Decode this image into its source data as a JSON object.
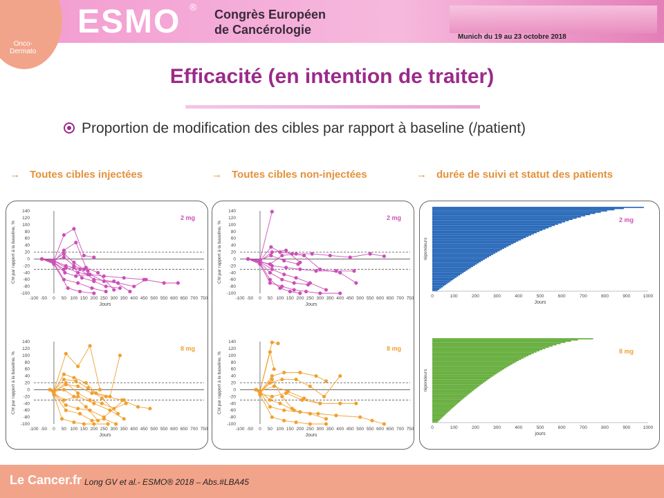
{
  "header": {
    "badge_line1": "Onco-",
    "badge_line2": "Dermato",
    "logo": "ESMO",
    "reg": "®",
    "congress_line1": "Congrès Européen",
    "congress_line2": "de Cancérologie",
    "dates": "Munich du 19 au 23 octobre 2018"
  },
  "slide": {
    "title": "Efficacité (en intention de traiter)",
    "bullet": "Proportion de modification des cibles par rapport à baseline (/patient)"
  },
  "columns": [
    {
      "label": "Toutes cibles injectées"
    },
    {
      "label": "Toutes cibles non-injectées"
    },
    {
      "label": "durée de suivi et statut des patients"
    }
  ],
  "chart_common": {
    "ylabel": "Cht par rapport à la baseline, %",
    "xlabel": "Jours",
    "xticks": [
      "-100",
      "-50",
      "0",
      "50",
      "100",
      "150",
      "200",
      "250",
      "300",
      "350",
      "400",
      "450",
      "500",
      "550",
      "600",
      "650",
      "700",
      "750"
    ],
    "yticks": [
      "140",
      "120",
      "100",
      "80",
      "60",
      "40",
      "20",
      "0",
      "-20",
      "-40",
      "-60",
      "-80",
      "-100"
    ]
  },
  "swimmer_common": {
    "ylabel": "répondeurs",
    "xticks": [
      "0",
      "100",
      "200",
      "300",
      "400",
      "500",
      "600",
      "700",
      "800",
      "900",
      "1000"
    ],
    "xlabel_top": "Jours",
    "xlabel_bottom": "jours"
  },
  "chart_data": [
    {
      "type": "line",
      "panel": "injected",
      "dose": "2 mg",
      "color": "#cc4fb7",
      "series": [
        {
          "x": [
            -60,
            0,
            50,
            100,
            150,
            200
          ],
          "y": [
            0,
            -5,
            70,
            88,
            10,
            5
          ]
        },
        {
          "x": [
            -60,
            0,
            50,
            110,
            160,
            220,
            300
          ],
          "y": [
            0,
            -8,
            25,
            48,
            -25,
            -40,
            -90
          ]
        },
        {
          "x": [
            -60,
            0,
            55,
            110,
            170,
            250,
            350,
            450,
            550,
            620
          ],
          "y": [
            0,
            -10,
            -40,
            -50,
            -45,
            -50,
            -55,
            -60,
            -70,
            -70
          ]
        },
        {
          "x": [
            -60,
            0,
            50,
            120,
            190,
            260
          ],
          "y": [
            0,
            -12,
            -60,
            -70,
            -85,
            -95
          ]
        },
        {
          "x": [
            -60,
            0,
            60,
            130,
            200,
            300,
            380
          ],
          "y": [
            0,
            -5,
            -20,
            -30,
            -60,
            -65,
            -95
          ]
        },
        {
          "x": [
            -60,
            0,
            50,
            100,
            150
          ],
          "y": [
            0,
            -3,
            15,
            -10,
            -30
          ]
        },
        {
          "x": [
            -60,
            0,
            50,
            100,
            140,
            200,
            260,
            330
          ],
          "y": [
            0,
            -10,
            -30,
            -25,
            -55,
            -65,
            -80,
            -85
          ]
        },
        {
          "x": [
            -60,
            0,
            60,
            120,
            180,
            250,
            320,
            400,
            460
          ],
          "y": [
            0,
            -6,
            -25,
            -40,
            -45,
            -65,
            -70,
            -80,
            -60
          ]
        },
        {
          "x": [
            -60,
            0,
            70,
            130,
            200
          ],
          "y": [
            0,
            -15,
            -85,
            -95,
            -100
          ]
        },
        {
          "x": [
            -60,
            0,
            50,
            100,
            170
          ],
          "y": [
            0,
            -4,
            5,
            -20,
            -35
          ]
        }
      ]
    },
    {
      "type": "line",
      "panel": "non-injected",
      "dose": "2 mg",
      "color": "#cc4fb7",
      "series": [
        {
          "x": [
            -60,
            0,
            60
          ],
          "y": [
            0,
            -3,
            138
          ]
        },
        {
          "x": [
            -60,
            0,
            55,
            100,
            160,
            220,
            300,
            400,
            480
          ],
          "y": [
            0,
            -5,
            35,
            20,
            15,
            10,
            -30,
            -40,
            -70
          ]
        },
        {
          "x": [
            -60,
            0,
            50,
            110,
            180,
            260,
            350,
            450,
            550,
            620
          ],
          "y": [
            0,
            -8,
            -15,
            10,
            15,
            15,
            10,
            5,
            15,
            8
          ]
        },
        {
          "x": [
            -60,
            0,
            60,
            130,
            200,
            280,
            380,
            470
          ],
          "y": [
            0,
            -6,
            -20,
            -25,
            -30,
            -35,
            -35,
            -35
          ]
        },
        {
          "x": [
            -60,
            0,
            50,
            110,
            170,
            240
          ],
          "y": [
            0,
            -10,
            -40,
            -60,
            -70,
            -75
          ]
        },
        {
          "x": [
            -60,
            0,
            50,
            100,
            150,
            200
          ],
          "y": [
            0,
            -12,
            -60,
            -85,
            -95,
            -100
          ]
        },
        {
          "x": [
            -60,
            0,
            60,
            120,
            180,
            250,
            330
          ],
          "y": [
            0,
            -8,
            -30,
            -45,
            -55,
            -70,
            -90
          ]
        },
        {
          "x": [
            -60,
            0,
            55,
            120,
            190
          ],
          "y": [
            0,
            -4,
            10,
            -5,
            -15
          ]
        },
        {
          "x": [
            -60,
            0,
            50,
            110,
            170,
            230,
            300,
            400
          ],
          "y": [
            0,
            -15,
            -70,
            -80,
            -90,
            -95,
            -100,
            -100
          ]
        },
        {
          "x": [
            -60,
            0,
            60,
            130,
            200
          ],
          "y": [
            0,
            -6,
            20,
            25,
            -10
          ]
        }
      ]
    },
    {
      "type": "line",
      "panel": "injected",
      "dose": "8 mg",
      "color": "#f0a030",
      "series": [
        {
          "x": [
            -20,
            0,
            60,
            120,
            180,
            230
          ],
          "y": [
            0,
            -3,
            105,
            68,
            128,
            0
          ]
        },
        {
          "x": [
            -20,
            0,
            50,
            100,
            160,
            210,
            280,
            330
          ],
          "y": [
            0,
            -5,
            45,
            35,
            20,
            -10,
            -20,
            100
          ]
        },
        {
          "x": [
            -20,
            0,
            60,
            120,
            190,
            260,
            340,
            420,
            480
          ],
          "y": [
            0,
            -8,
            15,
            10,
            -10,
            -20,
            -30,
            -50,
            -55
          ]
        },
        {
          "x": [
            -20,
            0,
            50,
            120,
            200,
            280,
            350
          ],
          "y": [
            0,
            -10,
            -30,
            -20,
            -40,
            -60,
            -85
          ]
        },
        {
          "x": [
            -20,
            0,
            60,
            130,
            190,
            250,
            310
          ],
          "y": [
            0,
            -12,
            -60,
            -70,
            -90,
            -85,
            -100
          ]
        },
        {
          "x": [
            -20,
            0,
            40,
            100,
            150,
            200,
            270
          ],
          "y": [
            0,
            -15,
            -85,
            -95,
            -100,
            -100,
            -100
          ]
        },
        {
          "x": [
            -20,
            0,
            60,
            120,
            180,
            240,
            300,
            360
          ],
          "y": [
            0,
            -6,
            20,
            -10,
            -30,
            -40,
            -55,
            -40
          ]
        },
        {
          "x": [
            -20,
            0,
            50,
            110,
            170,
            240,
            320
          ],
          "y": [
            0,
            -4,
            30,
            25,
            5,
            -25,
            -70
          ]
        },
        {
          "x": [
            -20,
            0,
            60,
            120,
            180,
            250,
            350
          ],
          "y": [
            0,
            -10,
            -45,
            -55,
            -60,
            -80,
            -30
          ]
        },
        {
          "x": [
            -20,
            0,
            50,
            100,
            160,
            220
          ],
          "y": [
            0,
            -5,
            0,
            -20,
            -50,
            -90
          ]
        }
      ]
    },
    {
      "type": "line",
      "panel": "non-injected",
      "dose": "8 mg",
      "color": "#f0a030",
      "series": [
        {
          "x": [
            -20,
            0,
            60,
            90
          ],
          "y": [
            0,
            -3,
            138,
            135
          ]
        },
        {
          "x": [
            -20,
            0,
            50,
            70
          ],
          "y": [
            0,
            -5,
            110,
            60
          ]
        },
        {
          "x": [
            -20,
            0,
            60,
            120,
            200,
            280,
            330
          ],
          "y": [
            0,
            -8,
            40,
            50,
            50,
            40,
            25
          ]
        },
        {
          "x": [
            -20,
            0,
            50,
            110,
            180,
            250,
            320,
            400
          ],
          "y": [
            0,
            -10,
            20,
            30,
            30,
            10,
            -20,
            40
          ]
        },
        {
          "x": [
            -20,
            0,
            60,
            130,
            210,
            300,
            400,
            480
          ],
          "y": [
            0,
            -12,
            -20,
            -10,
            -30,
            -40,
            -40,
            -40
          ]
        },
        {
          "x": [
            -20,
            0,
            50,
            120,
            200,
            290,
            380,
            500,
            560,
            620
          ],
          "y": [
            0,
            -6,
            -50,
            -60,
            -65,
            -70,
            -75,
            -80,
            -90,
            -100
          ]
        },
        {
          "x": [
            -20,
            0,
            60,
            120,
            180,
            250,
            330
          ],
          "y": [
            0,
            -15,
            -80,
            -90,
            -95,
            -100,
            -100
          ]
        },
        {
          "x": [
            -20,
            0,
            70,
            140,
            220,
            300
          ],
          "y": [
            0,
            -4,
            10,
            -5,
            -25,
            -40
          ]
        },
        {
          "x": [
            -20,
            0,
            50,
            100,
            170,
            250,
            330
          ],
          "y": [
            0,
            -5,
            -30,
            -40,
            -60,
            -70,
            -85
          ]
        },
        {
          "x": [
            -20,
            0,
            60,
            110,
            160
          ],
          "y": [
            0,
            -8,
            30,
            -20,
            -55
          ]
        }
      ]
    },
    {
      "type": "bar",
      "panel": "swimmer",
      "dose": "2 mg",
      "orientation": "horizontal",
      "color": "#1f62b6",
      "max_days": 975,
      "n_rows": 70
    },
    {
      "type": "bar",
      "panel": "swimmer",
      "dose": "8 mg",
      "orientation": "horizontal",
      "color": "#5faa34",
      "max_days": 735,
      "n_rows": 70
    }
  ],
  "footer": {
    "logo": "Le Cancer.fr",
    "citation": "Long GV et al.- ESMO® 2018 – Abs.#LBA45"
  }
}
